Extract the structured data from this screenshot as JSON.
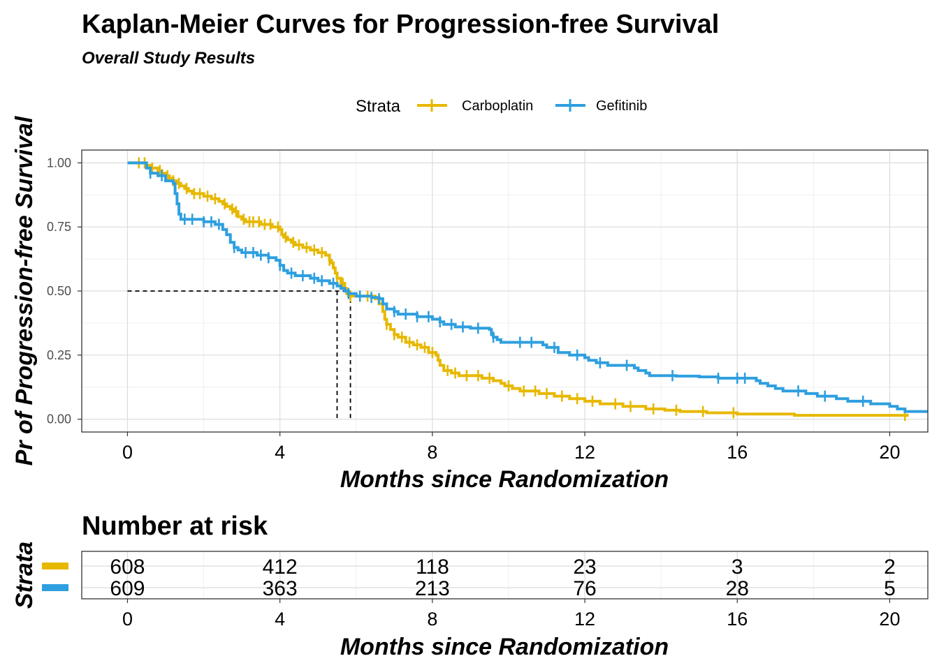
{
  "chart_data": {
    "type": "line",
    "subtype": "kaplan-meier",
    "title": "Kaplan-Meier Curves for Progression-free Survival",
    "subtitle": "Overall Study Results",
    "xlabel": "Months since Randomization",
    "ylabel": "Pr of Progression-free Survival",
    "xlim": [
      -1.2,
      21
    ],
    "ylim": [
      -0.05,
      1.05
    ],
    "x_ticks": [
      0,
      4,
      8,
      12,
      16,
      20
    ],
    "x_tick_labels": [
      "0",
      "4",
      "8",
      "12",
      "16",
      "20"
    ],
    "y_ticks": [
      0,
      0.25,
      0.5,
      0.75,
      1
    ],
    "y_tick_labels": [
      "0.00",
      "0.25",
      "0.50",
      "0.75",
      "1.00"
    ],
    "grid": true,
    "legend": {
      "title": "Strata",
      "placement": "top"
    },
    "median_reference": {
      "y": 0.5,
      "x": [
        5.5,
        5.85
      ]
    },
    "series": [
      {
        "name": "Carboplatin",
        "color": "#E7B800",
        "points": [
          [
            0,
            1
          ],
          [
            0.4,
            1
          ],
          [
            0.5,
            0.99
          ],
          [
            0.6,
            0.98
          ],
          [
            0.7,
            0.98
          ],
          [
            0.8,
            0.97
          ],
          [
            0.9,
            0.96
          ],
          [
            1.0,
            0.95
          ],
          [
            1.1,
            0.94
          ],
          [
            1.2,
            0.93
          ],
          [
            1.3,
            0.92
          ],
          [
            1.4,
            0.91
          ],
          [
            1.5,
            0.9
          ],
          [
            1.6,
            0.89
          ],
          [
            1.7,
            0.88
          ],
          [
            2.0,
            0.87
          ],
          [
            2.2,
            0.86
          ],
          [
            2.4,
            0.85
          ],
          [
            2.5,
            0.84
          ],
          [
            2.6,
            0.83
          ],
          [
            2.7,
            0.82
          ],
          [
            2.8,
            0.81
          ],
          [
            2.9,
            0.79
          ],
          [
            3.0,
            0.78
          ],
          [
            3.1,
            0.77
          ],
          [
            3.5,
            0.76
          ],
          [
            3.8,
            0.75
          ],
          [
            4.0,
            0.74
          ],
          [
            4.05,
            0.72
          ],
          [
            4.1,
            0.71
          ],
          [
            4.2,
            0.7
          ],
          [
            4.3,
            0.69
          ],
          [
            4.4,
            0.68
          ],
          [
            4.6,
            0.67
          ],
          [
            4.8,
            0.66
          ],
          [
            5.0,
            0.65
          ],
          [
            5.2,
            0.64
          ],
          [
            5.3,
            0.62
          ],
          [
            5.35,
            0.61
          ],
          [
            5.4,
            0.59
          ],
          [
            5.45,
            0.57
          ],
          [
            5.5,
            0.55
          ],
          [
            5.6,
            0.53
          ],
          [
            5.7,
            0.51
          ],
          [
            5.75,
            0.49
          ],
          [
            5.8,
            0.48
          ],
          [
            6.0,
            0.48
          ],
          [
            6.5,
            0.47
          ],
          [
            6.6,
            0.45
          ],
          [
            6.7,
            0.42
          ],
          [
            6.75,
            0.39
          ],
          [
            6.8,
            0.37
          ],
          [
            6.9,
            0.35
          ],
          [
            7.0,
            0.33
          ],
          [
            7.1,
            0.32
          ],
          [
            7.3,
            0.3
          ],
          [
            7.5,
            0.29
          ],
          [
            7.7,
            0.28
          ],
          [
            7.9,
            0.26
          ],
          [
            8.1,
            0.25
          ],
          [
            8.15,
            0.23
          ],
          [
            8.2,
            0.21
          ],
          [
            8.3,
            0.19
          ],
          [
            8.5,
            0.18
          ],
          [
            8.7,
            0.17
          ],
          [
            9.3,
            0.16
          ],
          [
            9.6,
            0.15
          ],
          [
            9.8,
            0.14
          ],
          [
            9.9,
            0.13
          ],
          [
            10.1,
            0.12
          ],
          [
            10.3,
            0.11
          ],
          [
            10.8,
            0.1
          ],
          [
            11.2,
            0.09
          ],
          [
            11.6,
            0.08
          ],
          [
            12.0,
            0.07
          ],
          [
            12.4,
            0.06
          ],
          [
            13.0,
            0.05
          ],
          [
            13.6,
            0.04
          ],
          [
            14.1,
            0.035
          ],
          [
            14.5,
            0.03
          ],
          [
            15.2,
            0.025
          ],
          [
            16.0,
            0.02
          ],
          [
            17.5,
            0.015
          ],
          [
            20.5,
            0.015
          ]
        ],
        "censor_times": [
          0.3,
          0.45,
          0.65,
          0.85,
          1.05,
          1.2,
          1.35,
          1.55,
          1.75,
          1.9,
          2.1,
          2.3,
          2.55,
          2.75,
          2.85,
          3.05,
          3.2,
          3.3,
          3.45,
          3.6,
          3.75,
          3.95,
          4.15,
          4.35,
          4.5,
          4.7,
          4.9,
          5.1,
          5.3,
          5.5,
          5.65,
          5.85,
          6.1,
          6.3,
          6.8,
          7.0,
          7.2,
          7.4,
          7.6,
          7.8,
          8.0,
          8.4,
          8.6,
          8.9,
          9.2,
          9.5,
          10.0,
          10.4,
          10.7,
          11.0,
          11.4,
          11.8,
          12.2,
          12.8,
          13.2,
          13.8,
          14.4,
          15.1,
          15.9,
          20.4
        ]
      },
      {
        "name": "Gefitinib",
        "color": "#2E9FDF",
        "points": [
          [
            0,
            1
          ],
          [
            0.5,
            0.98
          ],
          [
            0.6,
            0.96
          ],
          [
            0.8,
            0.95
          ],
          [
            1.0,
            0.93
          ],
          [
            1.2,
            0.92
          ],
          [
            1.25,
            0.88
          ],
          [
            1.3,
            0.84
          ],
          [
            1.35,
            0.8
          ],
          [
            1.4,
            0.78
          ],
          [
            2.0,
            0.77
          ],
          [
            2.3,
            0.76
          ],
          [
            2.5,
            0.74
          ],
          [
            2.6,
            0.72
          ],
          [
            2.7,
            0.69
          ],
          [
            2.8,
            0.67
          ],
          [
            2.9,
            0.66
          ],
          [
            3.0,
            0.65
          ],
          [
            3.4,
            0.64
          ],
          [
            3.7,
            0.63
          ],
          [
            3.9,
            0.62
          ],
          [
            4.0,
            0.6
          ],
          [
            4.1,
            0.58
          ],
          [
            4.2,
            0.57
          ],
          [
            4.4,
            0.56
          ],
          [
            4.8,
            0.55
          ],
          [
            5.0,
            0.54
          ],
          [
            5.3,
            0.53
          ],
          [
            5.5,
            0.52
          ],
          [
            5.6,
            0.51
          ],
          [
            5.7,
            0.5
          ],
          [
            5.8,
            0.49
          ],
          [
            6.0,
            0.48
          ],
          [
            6.4,
            0.475
          ],
          [
            6.6,
            0.47
          ],
          [
            6.7,
            0.45
          ],
          [
            6.8,
            0.43
          ],
          [
            7.0,
            0.42
          ],
          [
            7.1,
            0.41
          ],
          [
            7.6,
            0.4
          ],
          [
            8.0,
            0.39
          ],
          [
            8.2,
            0.38
          ],
          [
            8.3,
            0.37
          ],
          [
            8.6,
            0.36
          ],
          [
            9.0,
            0.355
          ],
          [
            9.5,
            0.35
          ],
          [
            9.55,
            0.33
          ],
          [
            9.6,
            0.32
          ],
          [
            9.7,
            0.31
          ],
          [
            9.8,
            0.3
          ],
          [
            10.9,
            0.29
          ],
          [
            11.0,
            0.28
          ],
          [
            11.3,
            0.26
          ],
          [
            11.6,
            0.25
          ],
          [
            12.0,
            0.24
          ],
          [
            12.1,
            0.23
          ],
          [
            12.3,
            0.22
          ],
          [
            12.6,
            0.21
          ],
          [
            13.3,
            0.2
          ],
          [
            13.4,
            0.19
          ],
          [
            13.6,
            0.18
          ],
          [
            13.7,
            0.17
          ],
          [
            14.4,
            0.168
          ],
          [
            15.0,
            0.165
          ],
          [
            15.5,
            0.16
          ],
          [
            16.5,
            0.15
          ],
          [
            16.6,
            0.14
          ],
          [
            16.8,
            0.13
          ],
          [
            17.0,
            0.12
          ],
          [
            17.2,
            0.11
          ],
          [
            17.8,
            0.1
          ],
          [
            18.1,
            0.09
          ],
          [
            18.6,
            0.08
          ],
          [
            18.9,
            0.07
          ],
          [
            19.5,
            0.06
          ],
          [
            20.0,
            0.05
          ],
          [
            20.2,
            0.04
          ],
          [
            20.4,
            0.03
          ],
          [
            21.0,
            0.03
          ]
        ],
        "censor_times": [
          0.6,
          0.9,
          1.5,
          1.7,
          2.0,
          2.2,
          2.4,
          2.8,
          3.1,
          3.3,
          3.5,
          3.7,
          4.0,
          4.3,
          4.6,
          4.9,
          5.1,
          5.4,
          5.8,
          6.1,
          6.4,
          6.6,
          7.0,
          7.3,
          7.6,
          7.9,
          8.2,
          8.5,
          8.8,
          9.2,
          9.6,
          10.3,
          10.6,
          11.2,
          11.8,
          12.4,
          13.1,
          14.3,
          15.5,
          16.0,
          16.2,
          17.6,
          18.3,
          19.3
        ]
      }
    ],
    "risk_table": {
      "title": "Number at risk",
      "ylabel": "Strata",
      "xlabel": "Months since Randomization",
      "times": [
        0,
        4,
        8,
        12,
        16,
        20
      ],
      "rows": [
        {
          "name": "Carboplatin",
          "color": "#E7B800",
          "values": [
            "608",
            "412",
            "118",
            "23",
            "3",
            "2"
          ]
        },
        {
          "name": "Gefitinib",
          "color": "#2E9FDF",
          "values": [
            "609",
            "363",
            "213",
            "76",
            "28",
            "5"
          ]
        }
      ]
    }
  }
}
